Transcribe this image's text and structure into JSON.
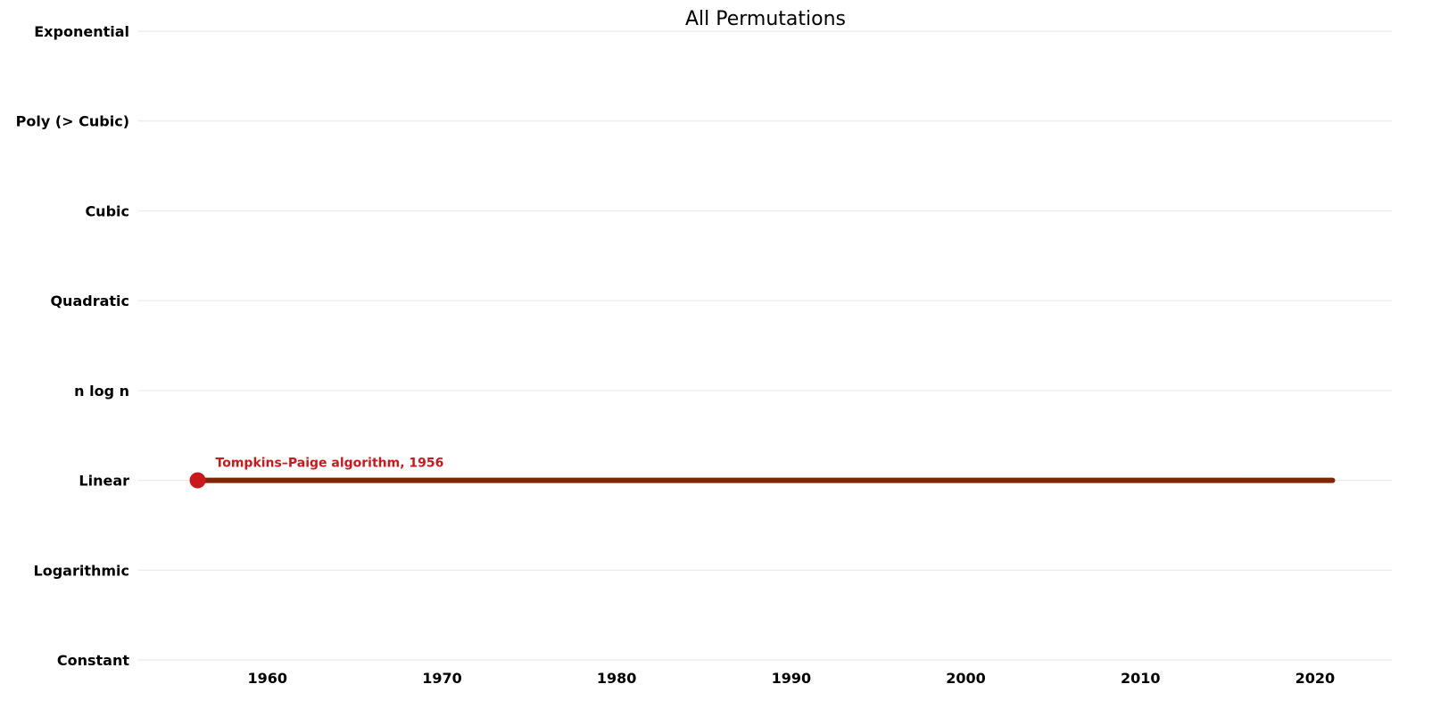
{
  "chart_data": {
    "type": "line",
    "title": "All Permutations",
    "xlabel": "",
    "ylabel": "",
    "xlim": [
      1952.6,
      2024.4
    ],
    "x_ticks": [
      1960,
      1970,
      1980,
      1990,
      2000,
      2010,
      2020
    ],
    "y_categories": [
      "Constant",
      "Logarithmic",
      "Linear",
      "n log n",
      "Quadratic",
      "Cubic",
      "Poly (> Cubic)",
      "Exponential"
    ],
    "grid": true,
    "series": [
      {
        "x": [
          1956,
          2021
        ],
        "y": [
          "Linear",
          "Linear"
        ],
        "color": "#7f2704"
      }
    ],
    "points": [
      {
        "x": 1956,
        "y": "Linear",
        "label": "Tompkins–Paige algorithm, 1956",
        "color": "#cb181d"
      }
    ]
  }
}
